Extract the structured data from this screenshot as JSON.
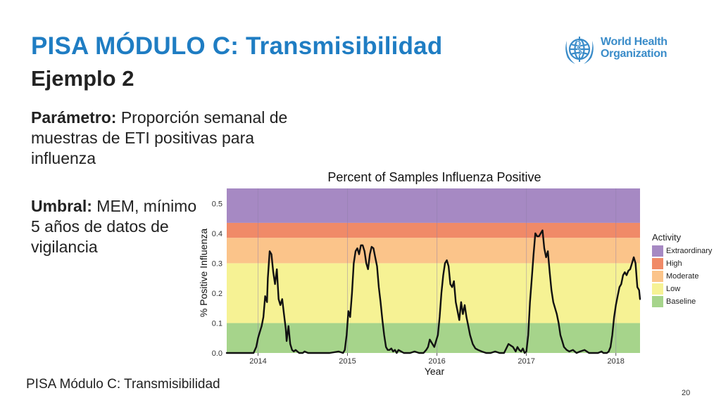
{
  "slide": {
    "title": "PISA MÓDULO C: Transmisibilidad",
    "subtitle": "Ejemplo 2",
    "param_label": "Parámetro:",
    "param_text": " Proporción semanal de muestras de ETI positivas para influenza",
    "umbral_label": "Umbral:",
    "umbral_text": " MEM, mínimo 5 años de datos de vigilancia",
    "footer": "PISA Módulo C: Transmisibilidad",
    "page_number": "20"
  },
  "logo": {
    "line1": "World Health",
    "line2": "Organization",
    "icon": "who-emblem-icon",
    "color": "#3a8cc9"
  },
  "chart_data": {
    "type": "line",
    "title": "Percent of Samples Influenza Positive",
    "xlabel": "Year",
    "ylabel": "% Positive Influenza",
    "xlim": [
      2013.65,
      2018.27
    ],
    "ylim": [
      0,
      0.55
    ],
    "x_ticks": [
      2014,
      2015,
      2016,
      2017,
      2018
    ],
    "x_tick_labels": [
      "2014",
      "2015",
      "2016",
      "2017",
      "2018"
    ],
    "y_ticks": [
      0.0,
      0.1,
      0.2,
      0.3,
      0.4,
      0.5
    ],
    "y_tick_labels": [
      "0.0",
      "0.1",
      "0.2",
      "0.3",
      "0.4",
      "0.5"
    ],
    "grid": true,
    "legend": {
      "title": "Activity",
      "position": "right",
      "items": [
        {
          "label": "Extraordinary",
          "color": "#a689c3"
        },
        {
          "label": "High",
          "color": "#f08a68"
        },
        {
          "label": "Moderate",
          "color": "#fbc48a"
        },
        {
          "label": "Low",
          "color": "#f6f294"
        },
        {
          "label": "Baseline",
          "color": "#a6d48b"
        }
      ]
    },
    "bands": [
      {
        "name": "Baseline",
        "from": 0,
        "to": 0.1,
        "color": "#a6d48b"
      },
      {
        "name": "Low",
        "from": 0.1,
        "to": 0.3,
        "color": "#f6f294"
      },
      {
        "name": "Moderate",
        "from": 0.3,
        "to": 0.385,
        "color": "#fbc48a"
      },
      {
        "name": "High",
        "from": 0.385,
        "to": 0.435,
        "color": "#f08a68"
      },
      {
        "name": "Extraordinary",
        "from": 0.435,
        "to": 0.55,
        "color": "#a689c3"
      }
    ],
    "line_color": "#111111",
    "series": [
      {
        "x": [
          2013.65,
          2013.95,
          2013.98,
          2014.0,
          2014.02,
          2014.04,
          2014.06,
          2014.08,
          2014.1,
          2014.11,
          2014.13,
          2014.15,
          2014.17,
          2014.19,
          2014.21,
          2014.23,
          2014.25,
          2014.27,
          2014.29,
          2014.31,
          2014.32,
          2014.34,
          2014.36,
          2014.38,
          2014.4,
          2014.42,
          2014.44,
          2014.46,
          2014.5,
          2014.52,
          2014.56,
          2014.6,
          2014.64,
          2014.72,
          2014.8,
          2014.9,
          2014.95,
          2014.97,
          2014.99,
          2015.01,
          2015.03,
          2015.05,
          2015.07,
          2015.09,
          2015.11,
          2015.13,
          2015.15,
          2015.17,
          2015.19,
          2015.21,
          2015.23,
          2015.25,
          2015.27,
          2015.29,
          2015.31,
          2015.33,
          2015.35,
          2015.37,
          2015.39,
          2015.41,
          2015.43,
          2015.45,
          2015.47,
          2015.49,
          2015.51,
          2015.53,
          2015.55,
          2015.57,
          2015.6,
          2015.63,
          2015.66,
          2015.7,
          2015.75,
          2015.8,
          2015.85,
          2015.88,
          2015.9,
          2015.92,
          2015.95,
          2015.97,
          2015.99,
          2016.01,
          2016.03,
          2016.05,
          2016.07,
          2016.09,
          2016.11,
          2016.13,
          2016.15,
          2016.17,
          2016.19,
          2016.21,
          2016.23,
          2016.25,
          2016.27,
          2016.29,
          2016.31,
          2016.33,
          2016.35,
          2016.37,
          2016.4,
          2016.43,
          2016.46,
          2016.5,
          2016.55,
          2016.6,
          2016.65,
          2016.7,
          2016.75,
          2016.8,
          2016.85,
          2016.88,
          2016.9,
          2016.92,
          2016.94,
          2016.96,
          2016.98,
          2017.0,
          2017.02,
          2017.04,
          2017.06,
          2017.08,
          2017.1,
          2017.12,
          2017.14,
          2017.16,
          2017.18,
          2017.2,
          2017.22,
          2017.24,
          2017.26,
          2017.28,
          2017.3,
          2017.32,
          2017.34,
          2017.36,
          2017.38,
          2017.4,
          2017.42,
          2017.45,
          2017.48,
          2017.52,
          2017.56,
          2017.6,
          2017.65,
          2017.7,
          2017.75,
          2017.8,
          2017.84,
          2017.86,
          2017.88,
          2017.9,
          2017.92,
          2017.94,
          2017.96,
          2017.98,
          2018.0,
          2018.02,
          2018.04,
          2018.06,
          2018.08,
          2018.1,
          2018.12,
          2018.14,
          2018.16,
          2018.18,
          2018.2,
          2018.22,
          2018.24,
          2018.26,
          2018.27
        ],
        "y": [
          0.0,
          0.0,
          0.02,
          0.05,
          0.07,
          0.09,
          0.12,
          0.19,
          0.17,
          0.25,
          0.34,
          0.33,
          0.27,
          0.23,
          0.28,
          0.18,
          0.16,
          0.18,
          0.13,
          0.08,
          0.04,
          0.09,
          0.03,
          0.01,
          0.005,
          0.01,
          0.005,
          0.0,
          0.0,
          0.005,
          0.0,
          0.0,
          0.0,
          0.0,
          0.0,
          0.005,
          0.0,
          0.01,
          0.06,
          0.14,
          0.12,
          0.2,
          0.3,
          0.34,
          0.35,
          0.33,
          0.36,
          0.36,
          0.34,
          0.3,
          0.28,
          0.33,
          0.355,
          0.35,
          0.32,
          0.29,
          0.22,
          0.17,
          0.11,
          0.06,
          0.02,
          0.01,
          0.01,
          0.015,
          0.005,
          0.01,
          0.0,
          0.01,
          0.005,
          0.0,
          0.0,
          0.0,
          0.005,
          0.0,
          0.0,
          0.01,
          0.02,
          0.045,
          0.03,
          0.02,
          0.04,
          0.06,
          0.12,
          0.2,
          0.26,
          0.3,
          0.31,
          0.29,
          0.23,
          0.22,
          0.24,
          0.17,
          0.14,
          0.11,
          0.17,
          0.13,
          0.16,
          0.12,
          0.09,
          0.06,
          0.03,
          0.015,
          0.01,
          0.005,
          0.0,
          0.0,
          0.005,
          0.0,
          0.0,
          0.03,
          0.02,
          0.005,
          0.02,
          0.01,
          0.005,
          0.015,
          0.0,
          0.005,
          0.06,
          0.17,
          0.25,
          0.33,
          0.4,
          0.39,
          0.39,
          0.4,
          0.41,
          0.35,
          0.32,
          0.34,
          0.27,
          0.21,
          0.17,
          0.15,
          0.13,
          0.1,
          0.06,
          0.04,
          0.02,
          0.01,
          0.005,
          0.01,
          0.0,
          0.005,
          0.01,
          0.0,
          0.0,
          0.0,
          0.005,
          0.0,
          0.0,
          0.0,
          0.005,
          0.02,
          0.06,
          0.12,
          0.16,
          0.19,
          0.22,
          0.23,
          0.26,
          0.27,
          0.26,
          0.275,
          0.28,
          0.3,
          0.32,
          0.3,
          0.22,
          0.21,
          0.18
        ]
      }
    ]
  }
}
